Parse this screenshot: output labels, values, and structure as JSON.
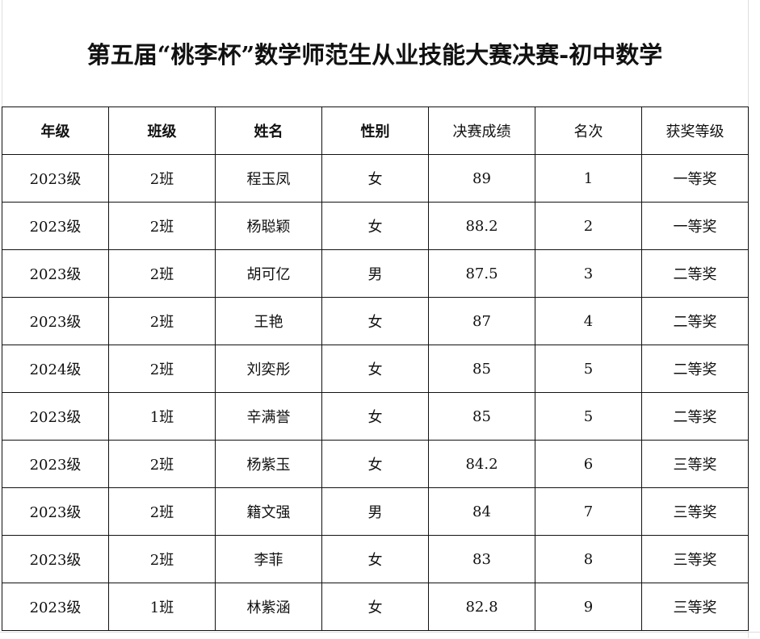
{
  "title": "第五届“桃李杯”数学师范生从业技能大赛决赛-初中数学",
  "headers": [
    "年级",
    "班级",
    "姓名",
    "性别",
    "决赛成绩",
    "名次",
    "获奖等级"
  ],
  "rows": [
    [
      "2023级",
      "2班",
      "程玉凤",
      "女",
      "89",
      "1",
      "一等奖"
    ],
    [
      "2023级",
      "2班",
      "杨聪颖",
      "女",
      "88.2",
      "2",
      "一等奖"
    ],
    [
      "2023级",
      "2班",
      "胡可亿",
      "男",
      "87.5",
      "3",
      "二等奖"
    ],
    [
      "2023级",
      "2班",
      "王艳",
      "女",
      "87",
      "4",
      "二等奖"
    ],
    [
      "2024级",
      "2班",
      "刘奕彤",
      "女",
      "85",
      "5",
      "二等奖"
    ],
    [
      "2023级",
      "1班",
      "辛满誉",
      "女",
      "85",
      "5",
      "二等奖"
    ],
    [
      "2023级",
      "2班",
      "杨紫玉",
      "女",
      "84.2",
      "6",
      "三等奖"
    ],
    [
      "2023级",
      "2班",
      "籍文强",
      "男",
      "84",
      "7",
      "三等奖"
    ],
    [
      "2023级",
      "2班",
      "李菲",
      "女",
      "83",
      "8",
      "三等奖"
    ],
    [
      "2023级",
      "1班",
      "林紫涵",
      "女",
      "82.8",
      "9",
      "三等奖"
    ]
  ]
}
